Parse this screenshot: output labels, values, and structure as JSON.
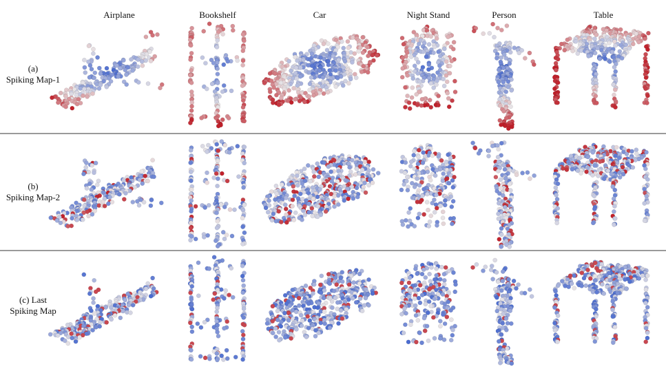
{
  "columns": [
    "Airplane",
    "Bookshelf",
    "Car",
    "Night Stand",
    "Person",
    "Table"
  ],
  "rows": [
    {
      "label_line1": "(a)",
      "label_line2": "Spiking Map-1"
    },
    {
      "label_line1": "(b)",
      "label_line2": "Spiking Map-2"
    },
    {
      "label_line1": "(c) Last",
      "label_line2": "Spiking Map"
    }
  ],
  "colors": {
    "high": "#c0202a",
    "mid": "#e8e4e6",
    "low": "#3a5fcd",
    "divider": "#9a9a9a"
  }
}
